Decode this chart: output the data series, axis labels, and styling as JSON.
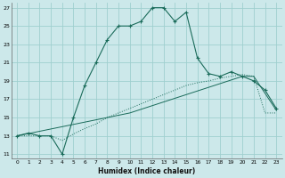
{
  "xlabel": "Humidex (Indice chaleur)",
  "bg_color": "#cce8ea",
  "grid_color": "#9fcfcf",
  "line_color": "#1a6b5a",
  "xlim": [
    -0.5,
    23.5
  ],
  "ylim": [
    10.5,
    27.5
  ],
  "yticks": [
    11,
    13,
    15,
    17,
    19,
    21,
    23,
    25,
    27
  ],
  "xticks": [
    0,
    1,
    2,
    3,
    4,
    5,
    6,
    7,
    8,
    9,
    10,
    11,
    12,
    13,
    14,
    15,
    16,
    17,
    18,
    19,
    20,
    21,
    22,
    23
  ],
  "s1_x": [
    0,
    1,
    2,
    3,
    4,
    5,
    6,
    7,
    8,
    9,
    10,
    11,
    12,
    13,
    14,
    15,
    16,
    17,
    18,
    19,
    20,
    21,
    22,
    23
  ],
  "s1_y": [
    13.0,
    13.3,
    13.0,
    13.0,
    11.0,
    15.0,
    18.5,
    21.0,
    23.5,
    25.0,
    25.0,
    25.5,
    27.0,
    27.0,
    25.5,
    26.5,
    21.5,
    19.8,
    19.5,
    20.0,
    19.5,
    19.0,
    18.0,
    16.0
  ],
  "s2_x": [
    0,
    1,
    2,
    3,
    4,
    5,
    6,
    7,
    8,
    9,
    10,
    11,
    12,
    13,
    14,
    15,
    16,
    17,
    18,
    19,
    20,
    21,
    22,
    23
  ],
  "s2_y": [
    13.0,
    13.0,
    13.0,
    13.0,
    12.5,
    13.2,
    13.8,
    14.3,
    15.0,
    15.5,
    16.0,
    16.5,
    17.0,
    17.5,
    18.0,
    18.5,
    18.8,
    19.0,
    19.3,
    19.5,
    19.7,
    19.5,
    15.5,
    15.5
  ],
  "s3_x": [
    0,
    10,
    15,
    20,
    21,
    23
  ],
  "s3_y": [
    13.0,
    15.5,
    17.5,
    19.5,
    19.5,
    15.8
  ]
}
